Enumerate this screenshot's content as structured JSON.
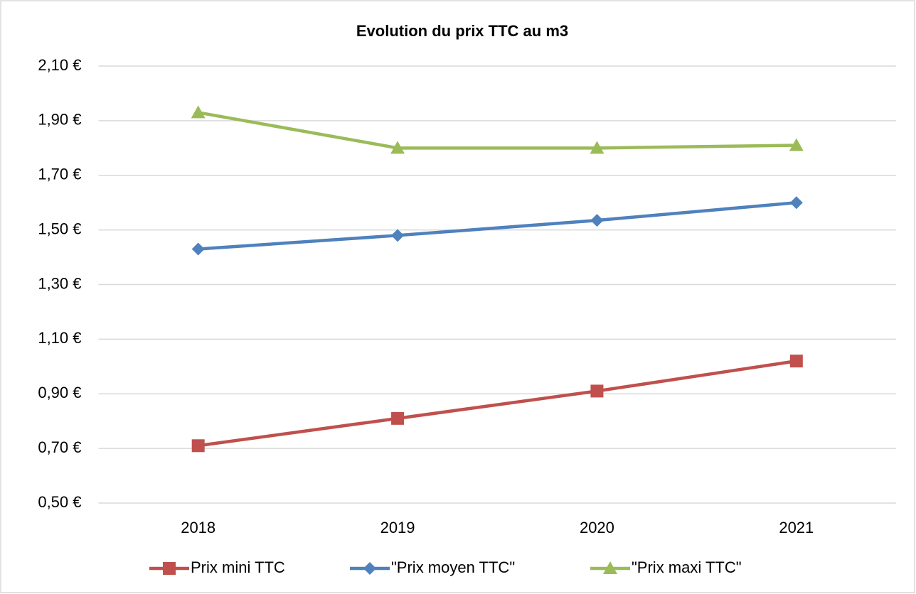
{
  "chart_data": {
    "type": "line",
    "title": "Evolution du prix TTC au m3",
    "categories": [
      "2018",
      "2019",
      "2020",
      "2021"
    ],
    "series": [
      {
        "name": "Prix mini TTC",
        "color": "#c0504d",
        "marker": "square",
        "values": [
          0.71,
          0.81,
          0.91,
          1.02
        ]
      },
      {
        "name": "\"Prix moyen TTC\"",
        "color": "#4f81bd",
        "marker": "diamond",
        "values": [
          1.43,
          1.48,
          1.535,
          1.6
        ]
      },
      {
        "name": "\"Prix maxi TTC\"",
        "color": "#9bbb59",
        "marker": "triangle",
        "values": [
          1.93,
          1.8,
          1.8,
          1.81
        ]
      }
    ],
    "ylim": [
      0.5,
      2.1
    ],
    "yticks": [
      {
        "value": 0.5,
        "label": "0,50 €"
      },
      {
        "value": 0.7,
        "label": "0,70 €"
      },
      {
        "value": 0.9,
        "label": "0,90 €"
      },
      {
        "value": 1.1,
        "label": "1,10 €"
      },
      {
        "value": 1.3,
        "label": "1,30 €"
      },
      {
        "value": 1.5,
        "label": "1,50 €"
      },
      {
        "value": 1.7,
        "label": "1,70 €"
      },
      {
        "value": 1.9,
        "label": "1,90 €"
      },
      {
        "value": 2.1,
        "label": "2,10 €"
      }
    ],
    "grid": true,
    "legend": "bottom"
  }
}
